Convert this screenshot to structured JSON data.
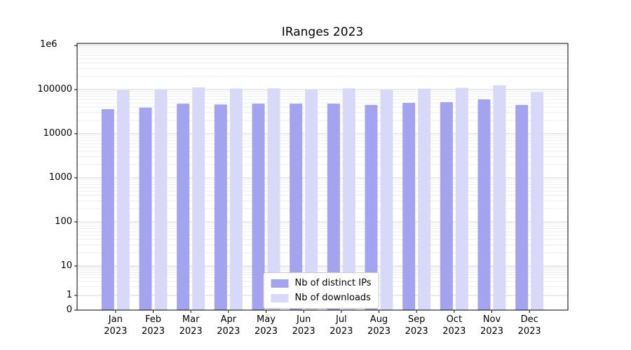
{
  "chart_data": {
    "type": "bar",
    "title": "IRanges 2023",
    "xlabel": "",
    "ylabel": "",
    "yscale": "log",
    "ylim": [
      0,
      1000000
    ],
    "grid": "both",
    "legend_position": "lower center",
    "categories": [
      "Jan 2023",
      "Feb 2023",
      "Mar 2023",
      "Apr 2023",
      "May 2023",
      "Jun 2023",
      "Jul 2023",
      "Aug 2023",
      "Sep 2023",
      "Oct 2023",
      "Nov 2023",
      "Dec 2023"
    ],
    "series": [
      {
        "name": "Nb of distinct IPs",
        "color": "#a3a3f0",
        "values": [
          36000,
          39000,
          48000,
          46000,
          48000,
          48000,
          48000,
          45000,
          50000,
          52000,
          60000,
          45000
        ]
      },
      {
        "name": "Nb of downloads",
        "color": "#d8d8f8",
        "values": [
          97000,
          100000,
          112000,
          106000,
          107000,
          100000,
          107000,
          100000,
          106000,
          110000,
          125000,
          88000
        ]
      }
    ],
    "yticks": {
      "values": [
        0,
        1,
        10,
        100,
        1000,
        10000,
        100000
      ],
      "labels": [
        "0",
        "1",
        "10",
        "100",
        "1000",
        "10000",
        "100000"
      ],
      "top_label": "1e6"
    },
    "colors": {
      "grid_major": "#d6d6d6",
      "grid_minor": "#e8e8e8",
      "axis": "#000000",
      "background": "#ffffff"
    }
  }
}
